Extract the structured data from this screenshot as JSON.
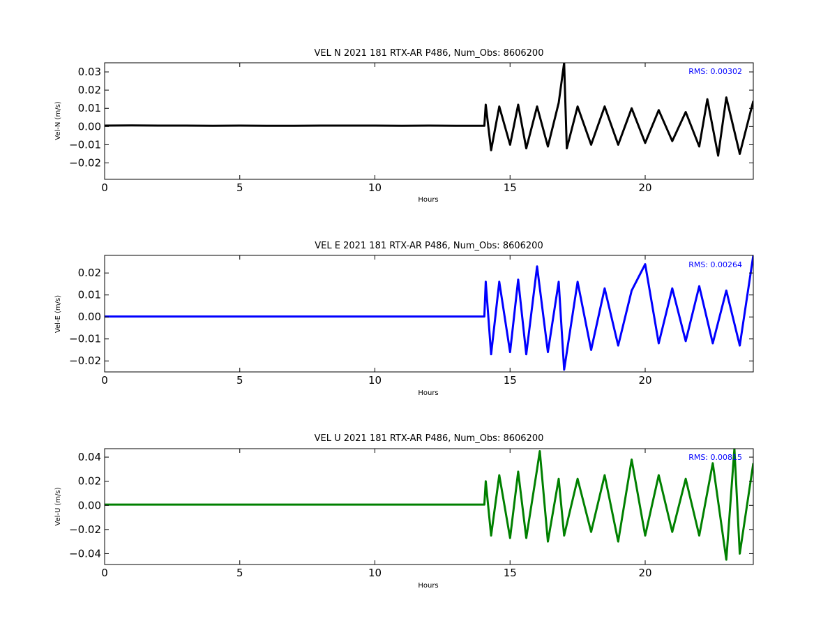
{
  "chart_data": [
    {
      "type": "line",
      "title": "VEL N 2021 181 RTX-AR  P486, Num_Obs: 8606200",
      "xlabel": "Hours",
      "ylabel": "Vel-N (m/s)",
      "rms_label": "RMS:  0.00302",
      "color": "#000000",
      "xlim": [
        0,
        24
      ],
      "ylim": [
        -0.029,
        0.035
      ],
      "xticks": [
        0,
        5,
        10,
        15,
        20
      ],
      "yticks": [
        -0.02,
        -0.01,
        0.0,
        0.01,
        0.02,
        0.03
      ],
      "ytick_labels": [
        "−0.02",
        "−0.01",
        "0.00",
        "0.01",
        "0.02",
        "0.03"
      ],
      "grid": false,
      "series": [
        {
          "x": [
            0,
            1,
            2,
            3,
            4,
            5,
            6,
            7,
            8,
            9,
            10,
            11,
            12,
            13,
            14.05,
            14.1,
            14.3,
            14.6,
            15.0,
            15.3,
            15.6,
            16.0,
            16.4,
            16.8,
            17.0,
            17.1,
            17.5,
            18.0,
            18.5,
            19.0,
            19.5,
            20.0,
            20.5,
            21.0,
            21.5,
            22.0,
            22.3,
            22.7,
            23.0,
            23.5,
            24.0
          ],
          "y": [
            0.0005,
            0.0006,
            0.0005,
            0.0005,
            0.0004,
            0.0005,
            0.0004,
            0.0004,
            0.0005,
            0.0005,
            0.0005,
            0.0004,
            0.0005,
            0.0004,
            0.0004,
            0.012,
            -0.013,
            0.011,
            -0.01,
            0.012,
            -0.012,
            0.011,
            -0.011,
            0.013,
            0.035,
            -0.012,
            0.011,
            -0.01,
            0.011,
            -0.01,
            0.01,
            -0.009,
            0.009,
            -0.008,
            0.008,
            -0.011,
            0.015,
            -0.016,
            0.016,
            -0.015,
            0.014
          ]
        }
      ]
    },
    {
      "type": "line",
      "title": "VEL E 2021 181 RTX-AR  P486, Num_Obs: 8606200",
      "xlabel": "Hours",
      "ylabel": "Vel-E (m/s)",
      "rms_label": "RMS:  0.00264",
      "color": "#0000ff",
      "xlim": [
        0,
        24
      ],
      "ylim": [
        -0.025,
        0.028
      ],
      "xticks": [
        0,
        5,
        10,
        15,
        20
      ],
      "yticks": [
        -0.02,
        -0.01,
        0.0,
        0.01,
        0.02
      ],
      "ytick_labels": [
        "−0.02",
        "−0.01",
        "0.00",
        "0.01",
        "0.02"
      ],
      "grid": false,
      "series": [
        {
          "x": [
            0,
            2,
            4,
            6,
            8,
            10,
            12,
            14.05,
            14.1,
            14.3,
            14.6,
            15.0,
            15.3,
            15.6,
            16.0,
            16.4,
            16.8,
            17.0,
            17.5,
            18.0,
            18.5,
            19.0,
            19.5,
            20.0,
            20.5,
            21.0,
            21.5,
            22.0,
            22.5,
            23.0,
            23.5,
            24.0
          ],
          "y": [
            0.0002,
            0.0002,
            0.0002,
            0.0002,
            0.0002,
            0.0002,
            0.0002,
            0.0002,
            0.016,
            -0.017,
            0.016,
            -0.016,
            0.017,
            -0.017,
            0.023,
            -0.016,
            0.016,
            -0.024,
            0.016,
            -0.015,
            0.013,
            -0.013,
            0.012,
            0.024,
            -0.012,
            0.013,
            -0.011,
            0.014,
            -0.012,
            0.012,
            -0.013,
            0.028
          ]
        }
      ]
    },
    {
      "type": "line",
      "title": "VEL U 2021 181 RTX-AR  P486, Num_Obs: 8606200",
      "xlabel": "Hours",
      "ylabel": "Vel-U (m/s)",
      "rms_label": "RMS:  0.00815",
      "color": "#008000",
      "xlim": [
        0,
        24
      ],
      "ylim": [
        -0.049,
        0.047
      ],
      "xticks": [
        0,
        5,
        10,
        15,
        20
      ],
      "yticks": [
        -0.04,
        -0.02,
        0.0,
        0.02,
        0.04
      ],
      "ytick_labels": [
        "−0.04",
        "−0.02",
        "0.00",
        "0.02",
        "0.04"
      ],
      "grid": false,
      "series": [
        {
          "x": [
            0,
            2,
            4,
            6,
            8,
            10,
            12,
            14.05,
            14.1,
            14.3,
            14.6,
            15.0,
            15.3,
            15.6,
            16.0,
            16.1,
            16.4,
            16.8,
            17.0,
            17.5,
            18.0,
            18.5,
            19.0,
            19.5,
            20.0,
            20.5,
            21.0,
            21.5,
            22.0,
            22.5,
            23.0,
            23.3,
            23.5,
            24.0
          ],
          "y": [
            0.0007,
            0.0007,
            0.0007,
            0.0007,
            0.0007,
            0.0007,
            0.0007,
            0.0007,
            0.02,
            -0.025,
            0.025,
            -0.027,
            0.028,
            -0.027,
            0.03,
            0.045,
            -0.03,
            0.022,
            -0.025,
            0.022,
            -0.022,
            0.025,
            -0.03,
            0.038,
            -0.025,
            0.025,
            -0.022,
            0.022,
            -0.025,
            0.035,
            -0.045,
            0.047,
            -0.04,
            0.035
          ]
        }
      ]
    }
  ]
}
